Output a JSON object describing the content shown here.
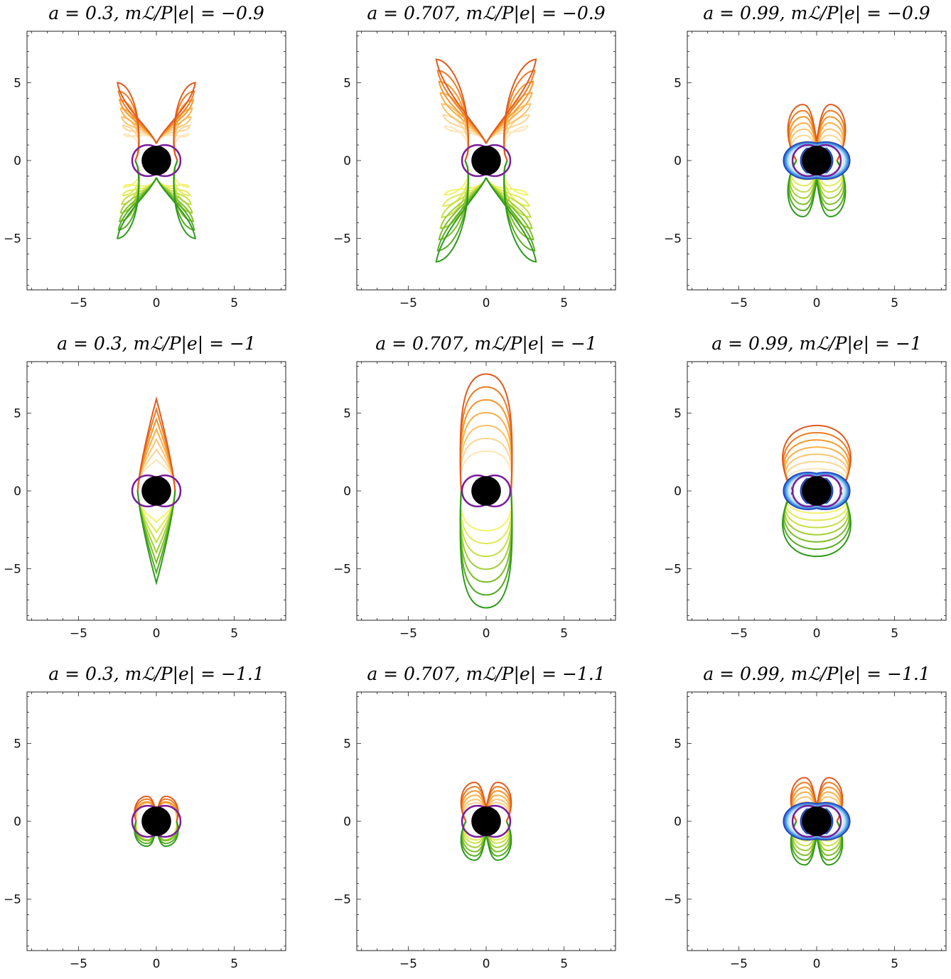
{
  "chart_data": [
    {
      "type": "line",
      "title": "a = 0.3,  mℒ/P|e| = −0.9",
      "a": 0.3,
      "mL_over_Pe": -0.9,
      "xlim": [
        -8.3,
        8.3
      ],
      "ylim": [
        -8.3,
        8.3
      ],
      "x_ticks": [
        "−5",
        "0",
        "5"
      ],
      "y_ticks": [
        "5",
        "0",
        "−5"
      ],
      "lobe": {
        "kind": "x",
        "extent": 5.0,
        "width": 2.5
      },
      "outer_blue": false,
      "grid": false
    },
    {
      "type": "line",
      "title": "a = 0.707,  mℒ/P|e| = −0.9",
      "a": 0.707,
      "mL_over_Pe": -0.9,
      "xlim": [
        -8.3,
        8.3
      ],
      "ylim": [
        -8.3,
        8.3
      ],
      "x_ticks": [
        "−5",
        "0",
        "5"
      ],
      "y_ticks": [
        "5",
        "0",
        "−5"
      ],
      "lobe": {
        "kind": "x",
        "extent": 6.5,
        "width": 3.2
      },
      "outer_blue": false,
      "grid": false
    },
    {
      "type": "line",
      "title": "a = 0.99,  mℒ/P|e| = −0.9",
      "a": 0.99,
      "mL_over_Pe": -0.9,
      "xlim": [
        -8.3,
        8.3
      ],
      "ylim": [
        -8.3,
        8.3
      ],
      "x_ticks": [
        "−5",
        "0",
        "5"
      ],
      "y_ticks": [
        "5",
        "0",
        "−5"
      ],
      "lobe": {
        "kind": "butterfly",
        "extent": 3.6,
        "width": 1.6
      },
      "outer_blue": true,
      "grid": false
    },
    {
      "type": "line",
      "title": "a = 0.3,  mℒ/P|e| = −1",
      "a": 0.3,
      "mL_over_Pe": -1,
      "xlim": [
        -8.3,
        8.3
      ],
      "ylim": [
        -8.3,
        8.3
      ],
      "x_ticks": [
        "−5",
        "0",
        "5"
      ],
      "y_ticks": [
        "5",
        "0",
        "−5"
      ],
      "lobe": {
        "kind": "spike",
        "extent": 5.9,
        "width": 1.0
      },
      "outer_blue": false,
      "grid": false
    },
    {
      "type": "line",
      "title": "a = 0.707,  mℒ/P|e| = −1",
      "a": 0.707,
      "mL_over_Pe": -1,
      "xlim": [
        -8.3,
        8.3
      ],
      "ylim": [
        -8.3,
        8.3
      ],
      "x_ticks": [
        "−5",
        "0",
        "5"
      ],
      "y_ticks": [
        "5",
        "0",
        "−5"
      ],
      "lobe": {
        "kind": "dome",
        "extent": 7.5,
        "width": 2.0
      },
      "outer_blue": false,
      "grid": false
    },
    {
      "type": "line",
      "title": "a = 0.99,  mℒ/P|e| = −1",
      "a": 0.99,
      "mL_over_Pe": -1,
      "xlim": [
        -8.3,
        8.3
      ],
      "ylim": [
        -8.3,
        8.3
      ],
      "x_ticks": [
        "−5",
        "0",
        "5"
      ],
      "y_ticks": [
        "5",
        "0",
        "−5"
      ],
      "lobe": {
        "kind": "circle",
        "extent": 4.2,
        "width": 2.8
      },
      "outer_blue": true,
      "grid": false
    },
    {
      "type": "line",
      "title": "a = 0.3,  mℒ/P|e| = −1.1",
      "a": 0.3,
      "mL_over_Pe": -1.1,
      "xlim": [
        -8.3,
        8.3
      ],
      "ylim": [
        -8.3,
        8.3
      ],
      "x_ticks": [
        "−5",
        "0",
        "5"
      ],
      "y_ticks": [
        "5",
        "0",
        "−5"
      ],
      "lobe": {
        "kind": "butterfly",
        "extent": 1.6,
        "width": 1.1
      },
      "outer_blue": false,
      "grid": false
    },
    {
      "type": "line",
      "title": "a = 0.707,  mℒ/P|e| = −1.1",
      "a": 0.707,
      "mL_over_Pe": -1.1,
      "xlim": [
        -8.3,
        8.3
      ],
      "ylim": [
        -8.3,
        8.3
      ],
      "x_ticks": [
        "−5",
        "0",
        "5"
      ],
      "y_ticks": [
        "5",
        "0",
        "−5"
      ],
      "lobe": {
        "kind": "butterfly",
        "extent": 2.5,
        "width": 1.35
      },
      "outer_blue": false,
      "grid": false
    },
    {
      "type": "line",
      "title": "a = 0.99,  mℒ/P|e| = −1.1",
      "a": 0.99,
      "mL_over_Pe": -1.1,
      "xlim": [
        -8.3,
        8.3
      ],
      "ylim": [
        -8.3,
        8.3
      ],
      "x_ticks": [
        "−5",
        "0",
        "5"
      ],
      "y_ticks": [
        "5",
        "0",
        "−5"
      ],
      "lobe": {
        "kind": "butterfly",
        "extent": 2.8,
        "width": 1.4
      },
      "outer_blue": true,
      "grid": false
    }
  ],
  "colors": {
    "upper": [
      "#e05a1e",
      "#ee7a22",
      "#f5962a",
      "#f9b049",
      "#fbc46e",
      "#fdd594",
      "#fee5b8"
    ],
    "lower": [
      "#2e9a1c",
      "#57ac22",
      "#7dbd2a",
      "#a2cf35",
      "#c6df44",
      "#e1ea55",
      "#f3f26a"
    ],
    "blue": [
      "#1f3ab5",
      "#2b63cf",
      "#3d8ade",
      "#5aa8e8",
      "#82c3ef",
      "#acdaf5",
      "#d3ecfa"
    ],
    "horizon_ring": "#7a1e9c",
    "black_hole": "#000000"
  }
}
